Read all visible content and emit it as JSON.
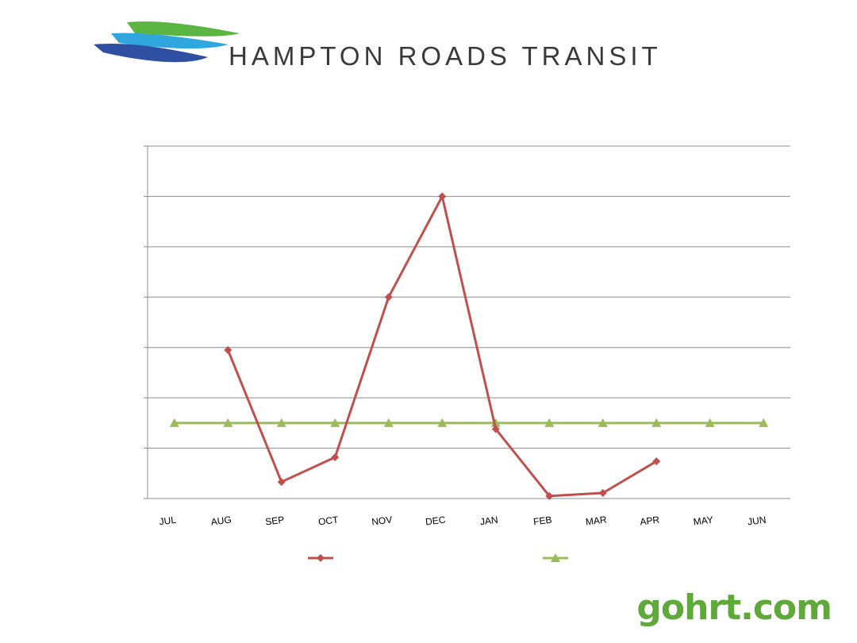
{
  "header": {
    "logo_text": "HAMPTON ROADS TRANSIT",
    "logo_colors": [
      "#5bb543",
      "#2fa7de",
      "#2f4fa2"
    ]
  },
  "footer": {
    "brand": "gohrt.com",
    "brand_color": "#5fa83a"
  },
  "chart_data": {
    "type": "line",
    "categories": [
      "JUL",
      "AUG",
      "SEP",
      "OCT",
      "NOV",
      "DEC",
      "JAN",
      "FEB",
      "MAR",
      "APR",
      "MAY",
      "JUN"
    ],
    "ylim": [
      0,
      7
    ],
    "grid": true,
    "legend": "bottom",
    "series": [
      {
        "name": "",
        "color": "#c0504d",
        "marker": "diamond",
        "values": [
          null,
          2.95,
          0.33,
          0.82,
          4.0,
          6.0,
          1.38,
          0.05,
          0.11,
          0.74,
          null,
          null
        ]
      },
      {
        "name": "",
        "color": "#9bbb59",
        "marker": "triangle",
        "values": [
          1.5,
          1.5,
          1.5,
          1.5,
          1.5,
          1.5,
          1.5,
          1.5,
          1.5,
          1.5,
          1.5,
          1.5
        ]
      }
    ]
  }
}
